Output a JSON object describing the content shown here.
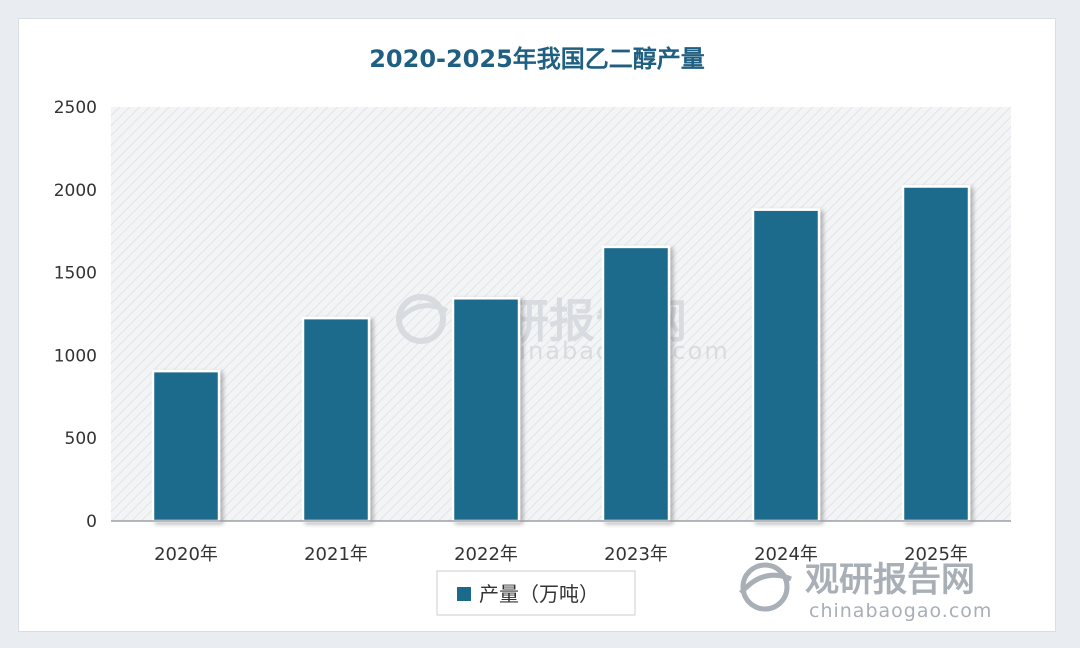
{
  "chart_data": {
    "type": "bar",
    "title": "2020-2025年我国乙二醇产量",
    "categories": [
      "2020年",
      "2021年",
      "2022年",
      "2023年",
      "2024年",
      "2025年"
    ],
    "series": [
      {
        "name": "产量（万吨）",
        "values": [
          905,
          1225,
          1345,
          1655,
          1880,
          2020
        ]
      }
    ],
    "ylim": [
      0,
      2500
    ],
    "yticks": [
      0,
      500,
      1000,
      1500,
      2000,
      2500
    ],
    "xlabel": "",
    "ylabel": "",
    "grid": false,
    "legend": "bottom-center"
  },
  "watermark": {
    "name": "观研报告网",
    "url": "chinabaogao.com"
  },
  "colors": {
    "bar": "#1b6a8c",
    "bar_outline": "#ffffff",
    "title": "#1f5f82",
    "plot_bg": "#f3f4f6",
    "hatch": "#e2e4e7",
    "axis": "#9aa0a6",
    "watermark_center": "#d4d8dd",
    "watermark_corner": "#a9afb6"
  }
}
